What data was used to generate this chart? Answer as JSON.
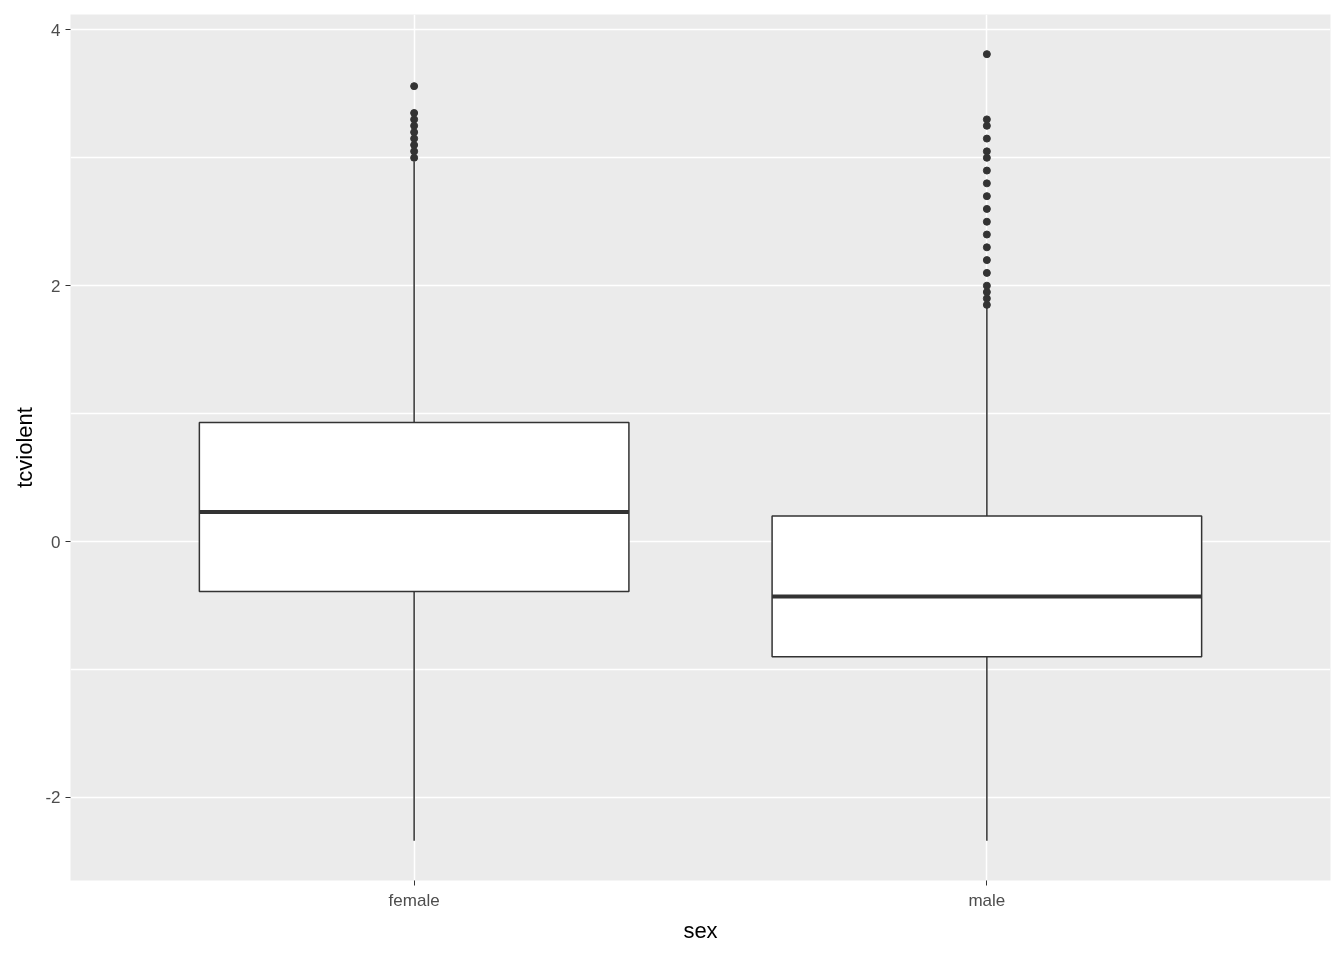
{
  "chart_data": {
    "type": "box",
    "xlabel": "sex",
    "ylabel": "tcviolent",
    "categories": [
      "female",
      "male"
    ],
    "boxes": [
      {
        "low": -2.34,
        "q1": -0.39,
        "median": 0.23,
        "q3": 0.93,
        "high": 2.97,
        "outliers": [
          3.0,
          3.05,
          3.1,
          3.15,
          3.2,
          3.25,
          3.3,
          3.35,
          3.56
        ]
      },
      {
        "low": -2.34,
        "q1": -0.9,
        "median": -0.43,
        "q3": 0.2,
        "high": 1.84,
        "outliers": [
          1.85,
          1.9,
          1.95,
          2.0,
          2.1,
          2.2,
          2.3,
          2.4,
          2.5,
          2.6,
          2.7,
          2.8,
          2.9,
          3.0,
          3.05,
          3.15,
          3.25,
          3.3,
          3.81
        ]
      }
    ],
    "color": "#333333",
    "ylim": [
      -2.65,
      4.12
    ],
    "yticks": [
      -2,
      {
        "value": -1,
        "label": null
      },
      0,
      {
        "value": 1,
        "label": null
      },
      2,
      {
        "value": 3,
        "label": null
      },
      4
    ],
    "grid": true
  }
}
